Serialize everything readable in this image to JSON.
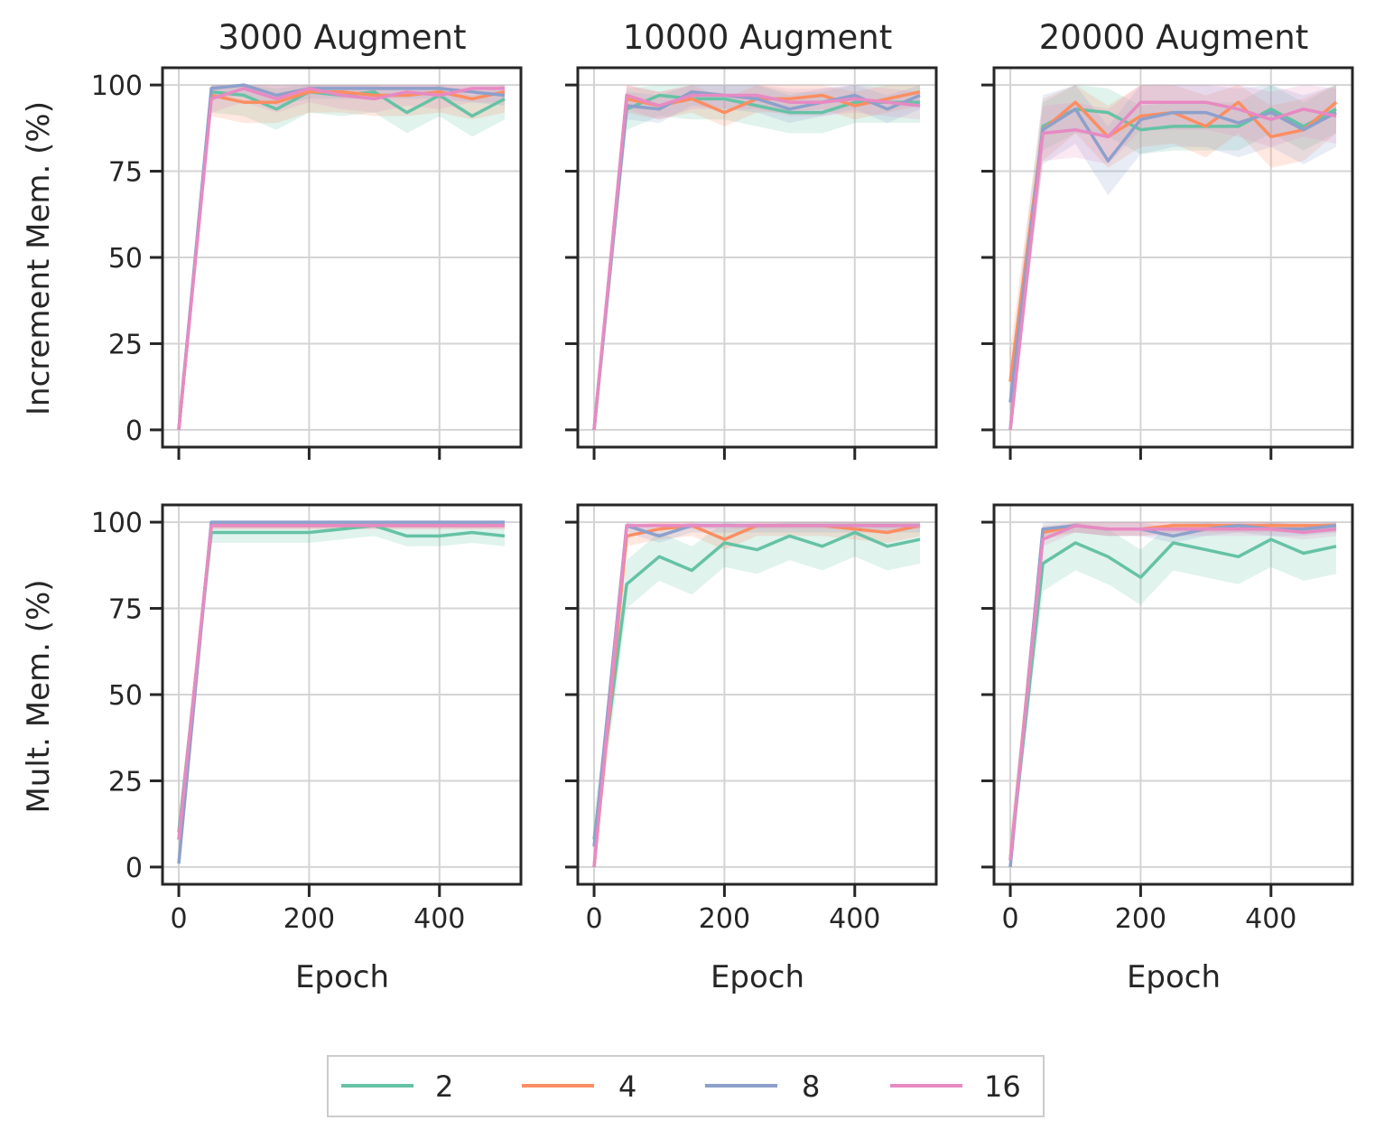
{
  "chart_data": {
    "type": "line",
    "x_ticks": [
      0,
      200,
      400
    ],
    "y_ticks": [
      0,
      25,
      50,
      75,
      100
    ],
    "xlim": [
      -25,
      525
    ],
    "ylim": [
      -5,
      105
    ],
    "xlabel": "Epoch",
    "row_labels": [
      "Increment Mem. (%)",
      "Mult. Mem. (%)"
    ],
    "col_titles": [
      "3000 Augment",
      "10000 Augment",
      "20000 Augment"
    ],
    "grid": true,
    "legend": {
      "placement": "bottom-center",
      "entries": [
        {
          "name": "2",
          "color": "#66c2a5"
        },
        {
          "name": "4",
          "color": "#fc8d62"
        },
        {
          "name": "8",
          "color": "#8da0cb"
        },
        {
          "name": "16",
          "color": "#e78ac3"
        }
      ]
    },
    "x": [
      0,
      50,
      100,
      150,
      200,
      250,
      300,
      350,
      400,
      450,
      500
    ],
    "panels": [
      {
        "row": 0,
        "col": 0,
        "series": [
          {
            "name": "2",
            "values": [
              0,
              98,
              97,
              93,
              98,
              97,
              98,
              92,
              97,
              91,
              96
            ],
            "band": 6
          },
          {
            "name": "4",
            "values": [
              0,
              97,
              95,
              95,
              98,
              98,
              97,
              97,
              98,
              96,
              98
            ],
            "band": 6
          },
          {
            "name": "8",
            "values": [
              0,
              99,
              100,
              97,
              99,
              99,
              99,
              99,
              99,
              98,
              97
            ],
            "band": 3
          },
          {
            "name": "16",
            "values": [
              0,
              96,
              99,
              96,
              99,
              97,
              96,
              98,
              97,
              99,
              99
            ],
            "band": 4
          }
        ]
      },
      {
        "row": 0,
        "col": 1,
        "series": [
          {
            "name": "2",
            "values": [
              0,
              93,
              97,
              96,
              96,
              94,
              92,
              92,
              95,
              95,
              95
            ],
            "band": 6
          },
          {
            "name": "4",
            "values": [
              0,
              96,
              94,
              96,
              92,
              96,
              96,
              97,
              94,
              96,
              98
            ],
            "band": 4
          },
          {
            "name": "8",
            "values": [
              0,
              94,
              93,
              98,
              97,
              96,
              93,
              95,
              97,
              93,
              97
            ],
            "band": 4
          },
          {
            "name": "16",
            "values": [
              0,
              97,
              94,
              97,
              97,
              97,
              95,
              95,
              96,
              95,
              94
            ],
            "band": 4
          }
        ]
      },
      {
        "row": 0,
        "col": 2,
        "series": [
          {
            "name": "2",
            "values": [
              0,
              88,
              93,
              92,
              87,
              88,
              88,
              88,
              93,
              88,
              93
            ],
            "band": 7
          },
          {
            "name": "4",
            "values": [
              14,
              87,
              95,
              85,
              91,
              92,
              88,
              95,
              85,
              87,
              95
            ],
            "band": 9
          },
          {
            "name": "8",
            "values": [
              8,
              87,
              93,
              78,
              90,
              92,
              92,
              89,
              92,
              87,
              92
            ],
            "band": 10
          },
          {
            "name": "16",
            "values": [
              0,
              86,
              87,
              85,
              95,
              95,
              95,
              93,
              90,
              93,
              91
            ],
            "band": 8
          }
        ]
      },
      {
        "row": 1,
        "col": 0,
        "series": [
          {
            "name": "2",
            "values": [
              10,
              97,
              97,
              97,
              97,
              98,
              99,
              96,
              96,
              97,
              96
            ],
            "band": 3
          },
          {
            "name": "4",
            "values": [
              8,
              99,
              99,
              99,
              99,
              99,
              99,
              99,
              99,
              99,
              99
            ],
            "band": 1
          },
          {
            "name": "8",
            "values": [
              1,
              100,
              100,
              100,
              100,
              100,
              100,
              100,
              100,
              100,
              100
            ],
            "band": 1
          },
          {
            "name": "16",
            "values": [
              8,
              99,
              99,
              99,
              99,
              99,
              99,
              99,
              99,
              99,
              99
            ],
            "band": 1
          }
        ]
      },
      {
        "row": 1,
        "col": 1,
        "series": [
          {
            "name": "2",
            "values": [
              8,
              82,
              90,
              86,
              94,
              92,
              96,
              93,
              97,
              93,
              95
            ],
            "band": 7
          },
          {
            "name": "4",
            "values": [
              0,
              96,
              98,
              99,
              95,
              99,
              99,
              99,
              98,
              97,
              99
            ],
            "band": 3
          },
          {
            "name": "8",
            "values": [
              6,
              99,
              96,
              99,
              99,
              99,
              99,
              99,
              99,
              99,
              99
            ],
            "band": 2
          },
          {
            "name": "16",
            "values": [
              0,
              99,
              99,
              99,
              99,
              99,
              99,
              99,
              99,
              99,
              99
            ],
            "band": 1
          }
        ]
      },
      {
        "row": 1,
        "col": 2,
        "series": [
          {
            "name": "2",
            "values": [
              2,
              88,
              94,
              90,
              84,
              94,
              92,
              90,
              95,
              91,
              93
            ],
            "band": 8
          },
          {
            "name": "4",
            "values": [
              2,
              97,
              99,
              98,
              98,
              99,
              99,
              99,
              99,
              99,
              99
            ],
            "band": 2
          },
          {
            "name": "8",
            "values": [
              0,
              98,
              99,
              98,
              98,
              96,
              98,
              99,
              98,
              98,
              99
            ],
            "band": 2
          },
          {
            "name": "16",
            "values": [
              2,
              95,
              99,
              98,
              98,
              98,
              98,
              98,
              98,
              97,
              98
            ],
            "band": 2
          }
        ]
      }
    ]
  }
}
